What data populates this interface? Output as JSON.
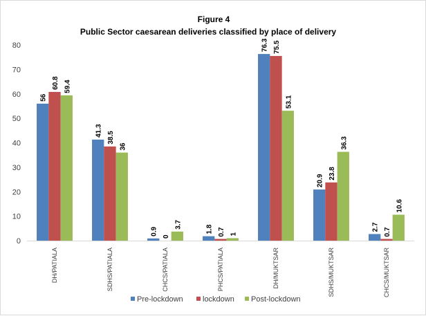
{
  "chart_data": {
    "type": "bar",
    "title": "Figure 4",
    "subtitle": "Public Sector caesarean  deliveries classified  by place of delivery",
    "categories": [
      "DH/PATIALA",
      "SDHS/PATIALA",
      "CHCS/PATIALA",
      "PHCS/PATIALA",
      "DH/MUKTSAR",
      "SDHS/MUKTSAR",
      "CHCS/MUKTSAR"
    ],
    "series": [
      {
        "name": "Pre-lockdown",
        "color": "#4f81bd",
        "values": [
          56,
          41.3,
          0.9,
          1.8,
          76.3,
          20.9,
          2.7
        ]
      },
      {
        "name": "lockdown",
        "color": "#c0504d",
        "values": [
          60.8,
          38.5,
          0,
          0.7,
          75.5,
          23.8,
          0.7
        ]
      },
      {
        "name": "Post-lockdown",
        "color": "#9bbb59",
        "values": [
          59.4,
          36,
          3.7,
          1,
          53.1,
          36.3,
          10.6
        ]
      }
    ],
    "data_labels": [
      [
        "56",
        "41.3",
        "0.9",
        "1.8",
        "76.3",
        "20.9",
        "2.7"
      ],
      [
        "60.8",
        "38.5",
        "0",
        "0.7",
        "75.5",
        "23.8",
        "0.7"
      ],
      [
        "59.4",
        "36",
        "3.7",
        "1",
        "53.1",
        "36.3",
        "10.6"
      ]
    ],
    "ylim": [
      0,
      80
    ],
    "yticks": [
      "0",
      "10",
      "20",
      "30",
      "40",
      "50",
      "60",
      "70",
      "80"
    ],
    "grid": false,
    "legend_position": "bottom"
  }
}
